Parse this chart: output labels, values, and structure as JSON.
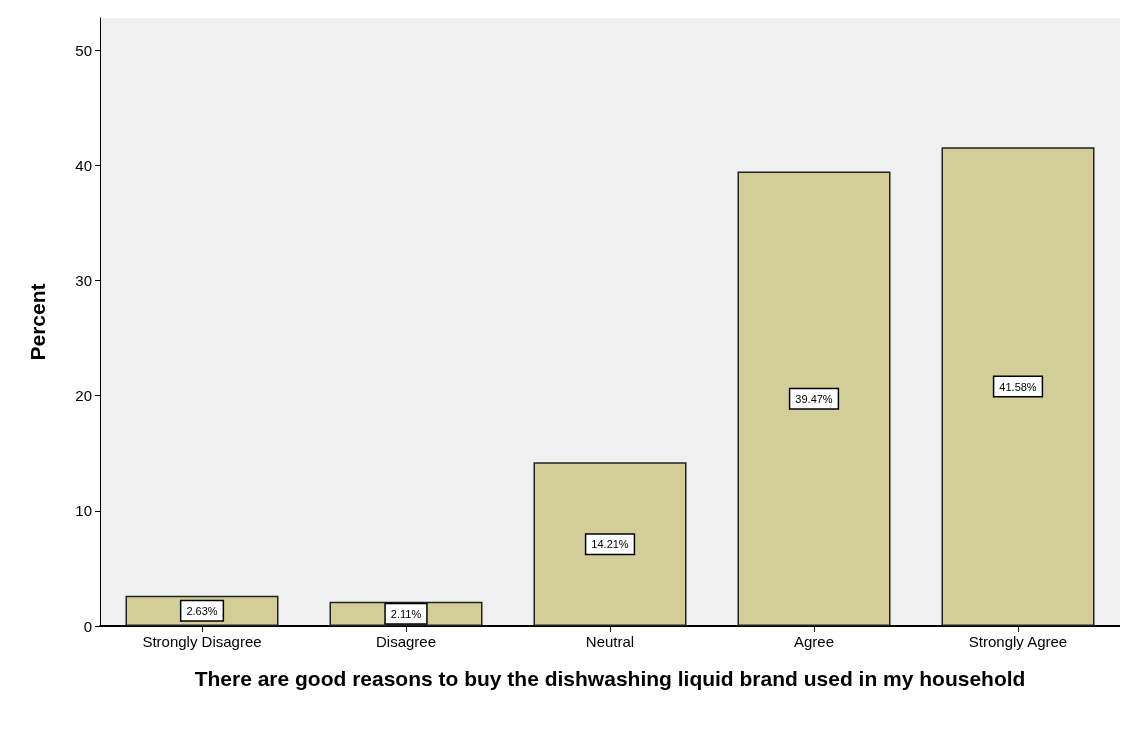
{
  "chart_data": {
    "type": "bar",
    "xlabel": "There are good reasons to buy the dishwashing liquid brand used in my household",
    "ylabel": "Percent",
    "categories": [
      "Strongly Disagree",
      "Disagree",
      "Neutral",
      "Agree",
      "Strongly Agree"
    ],
    "values": [
      2.63,
      2.11,
      14.21,
      39.47,
      41.58
    ],
    "value_labels": [
      "2.63%",
      "2.11%",
      "14.21%",
      "39.47%",
      "41.58%"
    ],
    "color": "#d3ce98",
    "ylim": [
      0,
      52.8
    ],
    "yticks": [
      0,
      10,
      20,
      30,
      40,
      50
    ]
  }
}
